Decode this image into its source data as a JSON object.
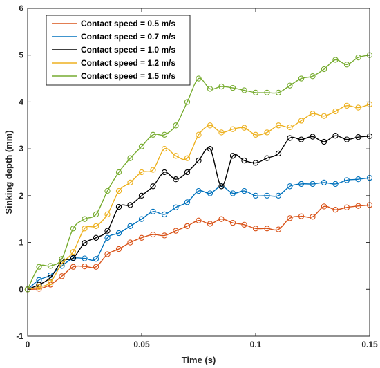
{
  "chart_data": {
    "type": "line",
    "title": "",
    "xlabel": "Time (s)",
    "ylabel": "Sinking depth (mm)",
    "xlim": [
      0,
      0.15
    ],
    "ylim": [
      -1,
      6
    ],
    "x_ticks": [
      0,
      0.05,
      0.1,
      0.15
    ],
    "x_tick_labels": [
      "0",
      "0.05",
      "0.1",
      "0.15"
    ],
    "y_ticks": [
      -1,
      0,
      1,
      2,
      3,
      4,
      5,
      6
    ],
    "y_tick_labels": [
      "-1",
      "0",
      "1",
      "2",
      "3",
      "4",
      "5",
      "6"
    ],
    "grid": false,
    "legend_position": "top-left",
    "marker": "circle-open",
    "x": [
      0,
      0.005,
      0.01,
      0.015,
      0.02,
      0.025,
      0.03,
      0.035,
      0.04,
      0.045,
      0.05,
      0.055,
      0.06,
      0.065,
      0.07,
      0.075,
      0.08,
      0.085,
      0.09,
      0.095,
      0.1,
      0.105,
      0.11,
      0.115,
      0.12,
      0.125,
      0.13,
      0.135,
      0.14,
      0.145,
      0.15
    ],
    "series": [
      {
        "name": "Contact speed = 0.5 m/s",
        "color": "#D95319",
        "values": [
          0,
          0.01,
          0.1,
          0.28,
          0.48,
          0.49,
          0.48,
          0.75,
          0.86,
          1.0,
          1.1,
          1.17,
          1.15,
          1.25,
          1.35,
          1.47,
          1.4,
          1.5,
          1.42,
          1.38,
          1.3,
          1.3,
          1.28,
          1.52,
          1.56,
          1.55,
          1.77,
          1.7,
          1.75,
          1.78,
          1.8
        ]
      },
      {
        "name": "Contact speed = 0.7 m/s",
        "color": "#0072BD",
        "values": [
          0,
          0.2,
          0.3,
          0.5,
          0.66,
          0.66,
          0.65,
          1.1,
          1.2,
          1.35,
          1.5,
          1.66,
          1.6,
          1.75,
          1.86,
          2.1,
          2.05,
          2.2,
          2.05,
          2.1,
          2.0,
          2.0,
          2.0,
          2.2,
          2.25,
          2.25,
          2.28,
          2.25,
          2.33,
          2.35,
          2.38
        ]
      },
      {
        "name": "Contact speed = 1.0 m/s",
        "color": "#000000",
        "values": [
          0,
          0.1,
          0.25,
          0.6,
          0.67,
          0.99,
          1.1,
          1.25,
          1.76,
          1.8,
          2.0,
          2.2,
          2.5,
          2.35,
          2.5,
          2.75,
          3.0,
          2.2,
          2.85,
          2.75,
          2.7,
          2.8,
          2.9,
          3.23,
          3.2,
          3.26,
          3.15,
          3.28,
          3.2,
          3.25,
          3.27
        ]
      },
      {
        "name": "Contact speed = 1.2 m/s",
        "color": "#EDB120",
        "values": [
          0,
          0.05,
          0.15,
          0.55,
          0.8,
          1.3,
          1.35,
          1.6,
          2.1,
          2.28,
          2.5,
          2.55,
          3.0,
          2.85,
          2.8,
          3.3,
          3.5,
          3.35,
          3.42,
          3.45,
          3.3,
          3.35,
          3.5,
          3.46,
          3.6,
          3.75,
          3.7,
          3.8,
          3.92,
          3.88,
          3.95
        ]
      },
      {
        "name": "Contact speed = 1.5 m/s",
        "color": "#77AC30",
        "values": [
          0,
          0.48,
          0.5,
          0.65,
          1.3,
          1.5,
          1.6,
          2.1,
          2.5,
          2.8,
          3.05,
          3.3,
          3.3,
          3.5,
          4.0,
          4.5,
          4.28,
          4.33,
          4.3,
          4.25,
          4.2,
          4.2,
          4.2,
          4.35,
          4.5,
          4.55,
          4.7,
          4.9,
          4.8,
          4.95,
          5.0
        ]
      }
    ]
  }
}
